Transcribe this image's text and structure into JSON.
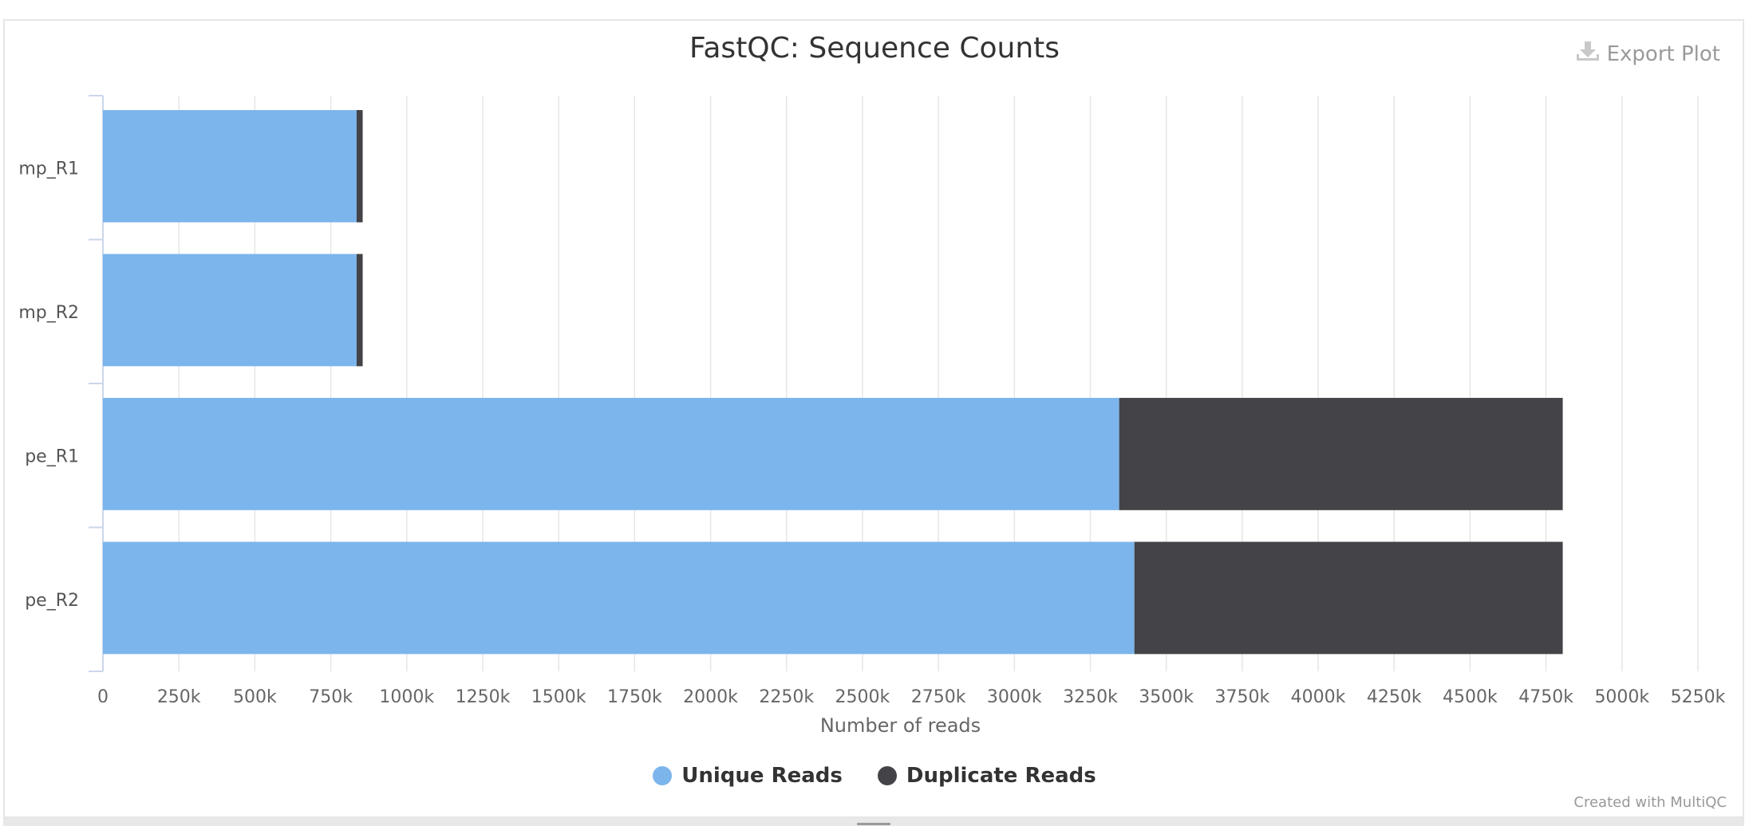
{
  "export_label": "Export Plot",
  "credit": "Created with MultiQC",
  "icons": {
    "export": "download-icon"
  },
  "colors": {
    "unique": "#7cb5ec",
    "duplicate": "#434348",
    "grid": "#e6e6e6",
    "axis": "#ccd6eb"
  },
  "chart_data": {
    "type": "bar",
    "orientation": "horizontal",
    "stacked": true,
    "title": "FastQC: Sequence Counts",
    "xlabel": "Number of reads",
    "ylabel": "",
    "xlim": [
      0,
      5250000
    ],
    "x_tick_values": [
      0,
      250000,
      500000,
      750000,
      1000000,
      1250000,
      1500000,
      1750000,
      2000000,
      2250000,
      2500000,
      2750000,
      3000000,
      3250000,
      3500000,
      3750000,
      4000000,
      4250000,
      4500000,
      4750000,
      5000000,
      5250000
    ],
    "x_tick_labels": [
      "0",
      "250k",
      "500k",
      "750k",
      "1000k",
      "1250k",
      "1500k",
      "1750k",
      "2000k",
      "2250k",
      "2500k",
      "2750k",
      "3000k",
      "3250k",
      "3500k",
      "3750k",
      "4000k",
      "4250k",
      "4500k",
      "4750k",
      "5000k",
      "5250k"
    ],
    "categories": [
      "mp_R1",
      "mp_R2",
      "pe_R1",
      "pe_R2"
    ],
    "series": [
      {
        "name": "Unique Reads",
        "color": "#7cb5ec",
        "values": [
          835000,
          835000,
          3345000,
          3395000
        ]
      },
      {
        "name": "Duplicate Reads",
        "color": "#434348",
        "values": [
          20000,
          20000,
          1460000,
          1410000
        ]
      }
    ],
    "grid": true,
    "legend": "bottom-center"
  }
}
